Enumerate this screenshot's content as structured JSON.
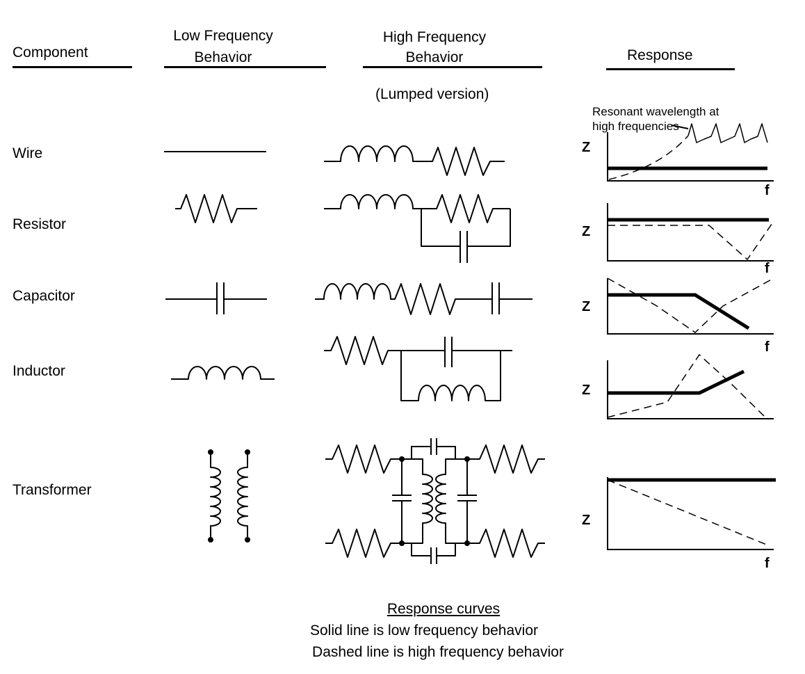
{
  "headers": {
    "component": "Component",
    "low_freq": [
      "Low Frequency",
      "Behavior"
    ],
    "high_freq": [
      "High Frequency",
      "Behavior"
    ],
    "response": "Response",
    "lumped": "(Lumped version)",
    "resonant_note": [
      "Resonant wavelength at",
      "high frequencies"
    ]
  },
  "components": [
    "Wire",
    "Resistor",
    "Capacitor",
    "Inductor",
    "Transformer"
  ],
  "axis_labels": {
    "z": "Z",
    "f": "f"
  },
  "caption": {
    "title": "Response curves",
    "line1": "Solid line is low frequency behavior",
    "line2": "Dashed line is high frequency behavior"
  }
}
